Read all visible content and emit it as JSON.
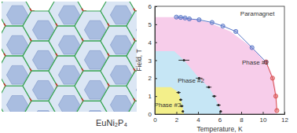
{
  "illustration": {
    "label": "EuNi₂P₄"
  },
  "chart_data": {
    "type": "phase_diagram",
    "x_label": "Temperature, K",
    "y_label": "Field, T",
    "xlim": [
      0,
      12
    ],
    "xticks": [
      0,
      2,
      4,
      6,
      8,
      10,
      12
    ],
    "ylim": [
      0,
      6
    ],
    "yticks": [
      0,
      1,
      2,
      3,
      4,
      5,
      6
    ],
    "grid": false,
    "series": [
      {
        "type": "area",
        "color": "#f7cdea",
        "x": [
          0,
          1.8,
          3.0,
          5.0,
          7.0,
          9.0,
          10.5,
          11.0,
          11.3,
          11.3
        ],
        "values": [
          5.4,
          5.4,
          5.35,
          5.1,
          4.6,
          3.7,
          2.7,
          2.0,
          1.0,
          0
        ]
      },
      {
        "type": "area",
        "color": "#c6e6f5",
        "x": [
          0,
          1.8,
          2.7,
          4.1,
          5.0,
          5.5,
          5.9,
          6.2
        ],
        "values": [
          3.5,
          3.5,
          3.0,
          2.0,
          1.5,
          1.0,
          0.5,
          0
        ]
      },
      {
        "type": "area",
        "color": "#f3ef8a",
        "x": [
          0,
          1.5,
          2.2,
          2.5,
          2.7
        ],
        "values": [
          1.5,
          1.5,
          1.2,
          0.6,
          0
        ]
      },
      {
        "type": "scatter",
        "color": "#5a78c8",
        "marker": "circle",
        "line_style": "solid",
        "x": [
          2.0,
          2.4,
          2.8,
          3.2,
          4.1,
          5.3,
          6.3,
          7.5,
          9.0,
          10.3
        ],
        "values": [
          5.4,
          5.38,
          5.35,
          5.3,
          5.25,
          5.1,
          4.9,
          4.6,
          3.7,
          2.9
        ]
      },
      {
        "type": "scatter",
        "color": "#d9534f",
        "marker": "circle",
        "line_style": "solid",
        "x": [
          10.3,
          10.9,
          11.2,
          11.3
        ],
        "values": [
          2.9,
          2.0,
          1.0,
          0.2
        ]
      },
      {
        "type": "scatter",
        "color": "#222222",
        "marker": "dot",
        "line_style": "none",
        "x": [
          2.7,
          4.1,
          5.0,
          5.5,
          5.9,
          6.1,
          2.2,
          2.4,
          2.5,
          2.6
        ],
        "values": [
          3.0,
          2.0,
          1.5,
          1.0,
          0.5,
          0.15,
          1.2,
          0.8,
          0.45,
          0.15
        ],
        "x_errors": [
          0.5,
          0.3,
          0.25,
          0.2,
          0.2,
          0.1,
          0.2,
          0.15,
          0.15,
          0.1
        ]
      }
    ],
    "annotations": [
      {
        "text": "Paramagnet",
        "x": 9.5,
        "y": 5.55
      },
      {
        "text": "Phase #1",
        "x": 9.3,
        "y": 2.85
      },
      {
        "text": "Phase #2",
        "x": 3.35,
        "y": 1.85
      },
      {
        "text": "Phase #3",
        "x": 1.2,
        "y": 0.5
      }
    ]
  }
}
